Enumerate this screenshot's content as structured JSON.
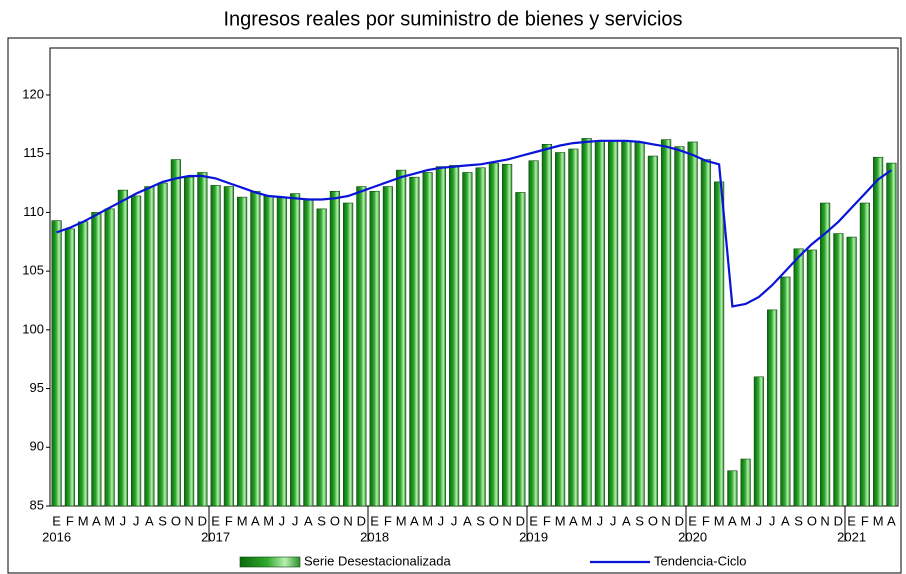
{
  "chart_data": {
    "type": "bar-line",
    "title": "Ingresos reales por suministro de bienes y servicios",
    "categories": [
      "E",
      "F",
      "M",
      "A",
      "M",
      "J",
      "J",
      "A",
      "S",
      "O",
      "N",
      "D",
      "E",
      "F",
      "M",
      "A",
      "M",
      "J",
      "J",
      "A",
      "S",
      "O",
      "N",
      "D",
      "E",
      "F",
      "M",
      "A",
      "M",
      "J",
      "J",
      "A",
      "S",
      "O",
      "N",
      "D",
      "E",
      "F",
      "M",
      "A",
      "M",
      "J",
      "J",
      "A",
      "S",
      "O",
      "N",
      "D",
      "E",
      "F",
      "M",
      "A",
      "M",
      "J",
      "J",
      "A",
      "S",
      "O",
      "N",
      "D",
      "E",
      "F",
      "M",
      "A"
    ],
    "year_labels": [
      "2016",
      null,
      null,
      null,
      null,
      null,
      null,
      null,
      null,
      null,
      null,
      null,
      "2017",
      null,
      null,
      null,
      null,
      null,
      null,
      null,
      null,
      null,
      null,
      null,
      "2018",
      null,
      null,
      null,
      null,
      null,
      null,
      null,
      null,
      null,
      null,
      null,
      "2019",
      null,
      null,
      null,
      null,
      null,
      null,
      null,
      null,
      null,
      null,
      null,
      "2020",
      null,
      null,
      null,
      null,
      null,
      null,
      null,
      null,
      null,
      null,
      null,
      "2021",
      null,
      null,
      null
    ],
    "series": [
      {
        "name": "Serie Desestacionalizada",
        "type": "bar",
        "color": "#2ea82e",
        "values": [
          109.3,
          108.6,
          109.2,
          110.0,
          110.3,
          111.9,
          111.4,
          112.2,
          112.5,
          114.5,
          113.0,
          113.4,
          112.3,
          112.2,
          111.3,
          111.8,
          111.4,
          111.3,
          111.6,
          111.1,
          110.3,
          111.8,
          110.8,
          112.2,
          111.8,
          112.2,
          113.6,
          113.0,
          113.4,
          113.9,
          114.0,
          113.4,
          113.8,
          114.2,
          114.1,
          111.7,
          114.4,
          115.8,
          115.1,
          115.4,
          116.3,
          116.1,
          116.1,
          116.1,
          116.0,
          114.8,
          116.2,
          115.6,
          116.0,
          114.5,
          112.6,
          88.0,
          89.0,
          96.0,
          101.7,
          104.5,
          106.9,
          106.8,
          110.8,
          108.2,
          107.9,
          110.8,
          114.7,
          114.2
        ]
      },
      {
        "name": "Tendencia-Ciclo",
        "type": "line",
        "color": "#0a14d8",
        "values": [
          108.3,
          108.7,
          109.2,
          109.8,
          110.4,
          111.0,
          111.6,
          112.1,
          112.6,
          112.9,
          113.1,
          113.1,
          112.9,
          112.5,
          112.1,
          111.7,
          111.4,
          111.3,
          111.2,
          111.1,
          111.1,
          111.2,
          111.4,
          111.8,
          112.2,
          112.6,
          113.0,
          113.3,
          113.6,
          113.8,
          113.9,
          114.0,
          114.1,
          114.3,
          114.5,
          114.8,
          115.1,
          115.4,
          115.7,
          115.9,
          116.0,
          116.1,
          116.1,
          116.1,
          116.0,
          115.8,
          115.6,
          115.3,
          114.9,
          114.4,
          114.1,
          102.0,
          102.2,
          102.8,
          103.8,
          105.0,
          106.2,
          107.3,
          108.2,
          109.2,
          110.4,
          111.6,
          112.8,
          113.6
        ]
      }
    ],
    "ylim": [
      85,
      124
    ],
    "yticks": [
      85,
      90,
      95,
      100,
      105,
      110,
      115,
      120
    ],
    "grid": false
  }
}
